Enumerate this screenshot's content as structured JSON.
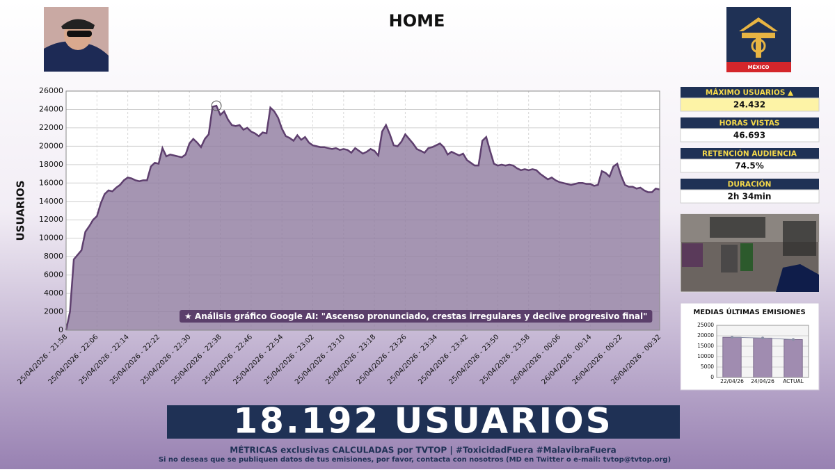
{
  "header": {
    "title": "HOME",
    "country": "MÉXICO"
  },
  "chart_data": [
    {
      "type": "area",
      "ylabel": "USUARIOS",
      "annotation": "★ Análisis gráfico Google AI: \"Ascenso pronunciado, crestas irregulares y declive progresivo final\"",
      "color": "#8e7a9f",
      "line_color": "#5e3f6e",
      "grid": true,
      "ylim": [
        0,
        26000
      ],
      "yticks": [
        0,
        2000,
        4000,
        6000,
        8000,
        10000,
        12000,
        14000,
        16000,
        18000,
        20000,
        22000,
        24000,
        26000
      ],
      "categories": [
        "25/04/2026 - 21:58",
        null,
        null,
        null,
        null,
        null,
        null,
        null,
        "25/04/2026 - 22:06",
        null,
        null,
        null,
        null,
        null,
        null,
        null,
        "25/04/2026 - 22:14",
        null,
        null,
        null,
        null,
        null,
        null,
        null,
        "25/04/2026 - 22:22",
        null,
        null,
        null,
        null,
        null,
        null,
        null,
        "25/04/2026 - 22:30",
        null,
        null,
        null,
        null,
        null,
        null,
        null,
        "25/04/2026 - 22:38",
        null,
        null,
        null,
        null,
        null,
        null,
        null,
        "25/04/2026 - 22:46",
        null,
        null,
        null,
        null,
        null,
        null,
        null,
        "25/04/2026 - 22:54",
        null,
        null,
        null,
        null,
        null,
        null,
        null,
        "25/04/2026 - 23:02",
        null,
        null,
        null,
        null,
        null,
        null,
        null,
        "25/04/2026 - 23:10",
        null,
        null,
        null,
        null,
        null,
        null,
        null,
        "25/04/2026 - 23:18",
        null,
        null,
        null,
        null,
        null,
        null,
        null,
        "25/04/2026 - 23:26",
        null,
        null,
        null,
        null,
        null,
        null,
        null,
        "25/04/2026 - 23:34",
        null,
        null,
        null,
        null,
        null,
        null,
        null,
        "25/04/2026 - 23:42",
        null,
        null,
        null,
        null,
        null,
        null,
        null,
        "25/04/2026 - 23:50",
        null,
        null,
        null,
        null,
        null,
        null,
        null,
        "25/04/2026 - 23:58",
        null,
        null,
        null,
        null,
        null,
        null,
        null,
        "26/04/2026 - 00:06",
        null,
        null,
        null,
        null,
        null,
        null,
        null,
        "26/04/2026 - 00:14",
        null,
        null,
        null,
        null,
        null,
        null,
        null,
        "26/04/2026 - 00:22",
        null,
        null,
        null,
        null,
        null,
        null,
        null,
        null,
        null,
        "26/04/2026 - 00:32"
      ],
      "values": [
        0,
        2000,
        7700,
        8200,
        8700,
        10700,
        11300,
        12000,
        12400,
        13800,
        14800,
        15200,
        15100,
        15500,
        15800,
        16300,
        16600,
        16500,
        16300,
        16200,
        16300,
        16300,
        17800,
        18200,
        18100,
        19800,
        18900,
        19100,
        19000,
        18900,
        18800,
        19100,
        20300,
        20800,
        20400,
        19900,
        20800,
        21300,
        24300,
        24400,
        23400,
        23800,
        22900,
        22300,
        22200,
        22300,
        21800,
        22000,
        21600,
        21400,
        21100,
        21500,
        21400,
        24200,
        23800,
        23100,
        21900,
        21100,
        20900,
        20600,
        21200,
        20700,
        21000,
        20400,
        20100,
        20000,
        19900,
        19900,
        19800,
        19700,
        19800,
        19600,
        19700,
        19600,
        19300,
        19800,
        19500,
        19200,
        19400,
        19700,
        19500,
        19000,
        21600,
        22300,
        21300,
        20100,
        20000,
        20500,
        21300,
        20800,
        20300,
        19700,
        19500,
        19300,
        19800,
        19900,
        20100,
        20300,
        19900,
        19100,
        19400,
        19200,
        19000,
        19200,
        18500,
        18200,
        17900,
        17900,
        20600,
        21000,
        19500,
        18100,
        17900,
        18000,
        17900,
        18000,
        17900,
        17600,
        17400,
        17500,
        17400,
        17500,
        17400,
        17000,
        16700,
        16400,
        16600,
        16300,
        16100,
        16000,
        15900,
        15800,
        15900,
        16000,
        16000,
        15900,
        15900,
        15700,
        15800,
        17300,
        17100,
        16700,
        17800,
        18100,
        16800,
        15800,
        15600,
        15600,
        15400,
        15500,
        15200,
        15000,
        15000,
        15400,
        15300
      ]
    },
    {
      "type": "bar",
      "title": "MEDIAS ÚLTIMAS EMISIONES",
      "categories": [
        "22/04/26",
        "24/04/26",
        "ACTUAL"
      ],
      "values": [
        19300,
        18900,
        18192
      ],
      "color": "#a08cb0",
      "line_color": "#8a8fa6",
      "grid": true,
      "ylim": [
        0,
        25000
      ],
      "yticks": [
        0,
        5000,
        10000,
        15000,
        20000,
        25000
      ]
    }
  ],
  "stats": [
    {
      "label": "MÁXIMO USUARIOS ▲",
      "value": "24.432"
    },
    {
      "label": "HORAS VISTAS",
      "value": "46.693"
    },
    {
      "label": "RETENCIÓN AUDIENCIA",
      "value": "74.5%"
    },
    {
      "label": "DURACIÓN",
      "value": "2h 34min"
    }
  ],
  "banner": "18.192 USUARIOS",
  "footer": {
    "line1": "MÉTRICAS exclusivas CALCULADAS por TVTOP | #ToxicidadFuera #MalavibraFuera",
    "line2": "Si no deseas que se publiquen datos de tus emisiones, por favor, contacta con nosotros (MD en Twitter o e-mail: tvtop@tvtop.org)"
  }
}
